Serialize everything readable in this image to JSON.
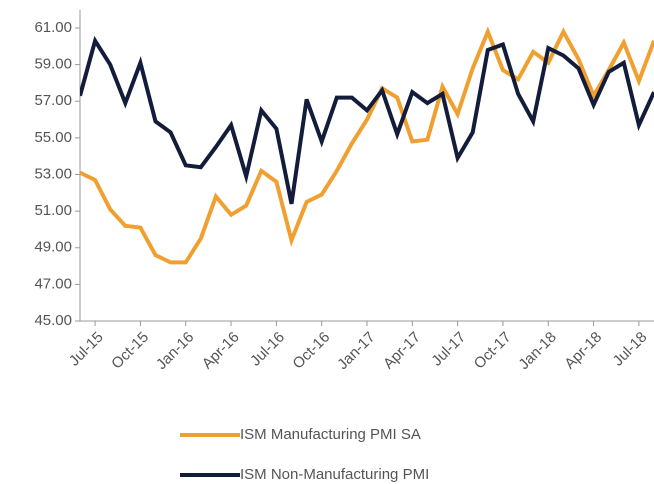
{
  "chart_data": {
    "type": "line",
    "categories": [
      null,
      "Jul-15",
      null,
      null,
      "Oct-15",
      null,
      null,
      "Jan-16",
      null,
      null,
      "Apr-16",
      null,
      null,
      "Jul-16",
      null,
      null,
      "Oct-16",
      null,
      null,
      "Jan-17",
      null,
      null,
      "Apr-17",
      null,
      null,
      "Jul-17",
      null,
      null,
      "Oct-17",
      null,
      null,
      "Jan-18",
      null,
      null,
      "Apr-18",
      null,
      null,
      "Jul-18",
      null
    ],
    "series": [
      {
        "name": "ISM Manufacturing PMI SA",
        "color": "#f0a030",
        "values": [
          53.1,
          52.7,
          51.1,
          50.2,
          50.1,
          48.6,
          48.2,
          48.2,
          49.5,
          51.8,
          50.8,
          51.3,
          53.2,
          52.6,
          49.4,
          51.5,
          51.9,
          53.2,
          54.7,
          56.0,
          57.7,
          57.2,
          54.8,
          54.9,
          57.8,
          56.3,
          58.8,
          60.8,
          58.7,
          58.2,
          59.7,
          59.1,
          60.8,
          59.3,
          57.3,
          58.7,
          60.2,
          58.1,
          60.3
        ]
      },
      {
        "name": "ISM Non-Manufacturing PMI",
        "color": "#141c3c",
        "values": [
          57.3,
          60.3,
          59.0,
          56.9,
          59.1,
          55.9,
          55.3,
          53.5,
          53.4,
          54.5,
          55.7,
          52.9,
          56.5,
          55.5,
          51.4,
          57.1,
          54.8,
          57.2,
          57.2,
          56.5,
          57.6,
          55.2,
          57.5,
          56.9,
          57.4,
          53.9,
          55.3,
          59.8,
          60.1,
          57.4,
          55.9,
          59.9,
          59.5,
          58.8,
          56.8,
          58.6,
          59.1,
          55.7,
          57.5
        ]
      }
    ],
    "ylim": [
      45,
      61
    ],
    "yticks": [
      {
        "value": 45,
        "label": "45.00"
      },
      {
        "value": 47,
        "label": "47.00"
      },
      {
        "value": 49,
        "label": "49.00"
      },
      {
        "value": 51,
        "label": "51.00"
      },
      {
        "value": 53,
        "label": "53.00"
      },
      {
        "value": 55,
        "label": "55.00"
      },
      {
        "value": 57,
        "label": "57.00"
      },
      {
        "value": 59,
        "label": "59.00"
      },
      {
        "value": 61,
        "label": "61.00"
      }
    ],
    "grid": false,
    "legend": "bottom"
  }
}
